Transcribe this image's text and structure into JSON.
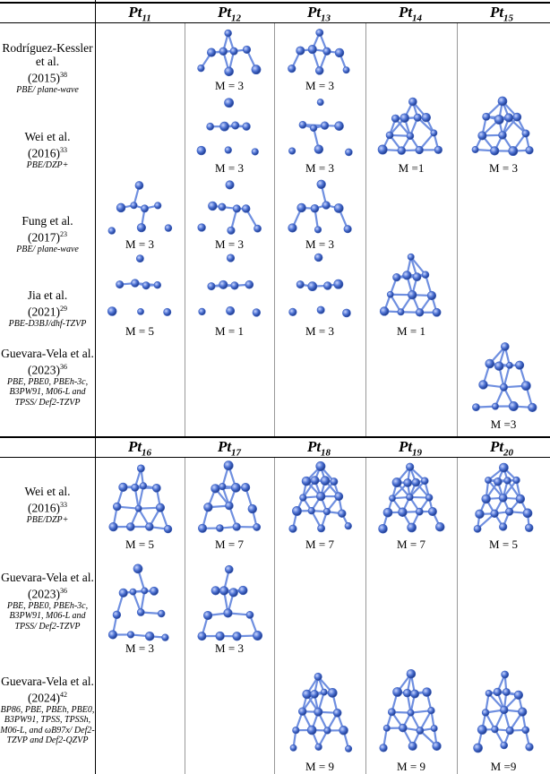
{
  "columns_top": [
    {
      "main": "Pt",
      "sub": "11"
    },
    {
      "main": "Pt",
      "sub": "12"
    },
    {
      "main": "Pt",
      "sub": "13"
    },
    {
      "main": "Pt",
      "sub": "14"
    },
    {
      "main": "Pt",
      "sub": "15"
    }
  ],
  "columns_bottom": [
    {
      "main": "Pt",
      "sub": "16"
    },
    {
      "main": "Pt",
      "sub": "17"
    },
    {
      "main": "Pt",
      "sub": "18"
    },
    {
      "main": "Pt",
      "sub": "19"
    },
    {
      "main": "Pt",
      "sub": "20"
    }
  ],
  "rows_top": [
    {
      "author": "Rodríguez-Kessler et al.",
      "year": "(2015)",
      "ref": "38",
      "method": "PBE/ plane-wave",
      "cells": [
        "",
        "M = 3",
        "M = 3",
        "",
        ""
      ]
    },
    {
      "author": "Wei et al.",
      "year": "(2016)",
      "ref": "33",
      "method": "PBE/DZP+",
      "cells": [
        "",
        "M = 3",
        "M = 3",
        "M =1",
        "M = 3"
      ]
    },
    {
      "author": "Fung et al.",
      "year": "(2017)",
      "ref": "23",
      "method": "PBE/ plane-wave",
      "cells": [
        "M = 3",
        "M = 3",
        "M = 3",
        "",
        ""
      ]
    },
    {
      "author": "Jia et al.",
      "year": "(2021)",
      "ref": "29",
      "method": "PBE-D3BJ/dhf-TZVP",
      "cells": [
        "M = 5",
        "M = 1",
        "M = 3",
        "M = 1",
        ""
      ]
    },
    {
      "author": "Guevara-Vela et al.",
      "year": "(2023)",
      "ref": "36",
      "method": "PBE, PBE0, PBEh-3c, B3PW91, M06-L and TPSS/ Def2-TZVP",
      "cells": [
        "",
        "",
        "",
        "",
        "M =3"
      ]
    }
  ],
  "rows_bottom": [
    {
      "author": "Wei et al.",
      "year": "(2016)",
      "ref": "33",
      "method": "PBE/DZP+",
      "cells": [
        "M = 5",
        "M = 7",
        "M = 7",
        "M = 7",
        "M = 5"
      ]
    },
    {
      "author": "Guevara-Vela et al.",
      "year": "(2023)",
      "ref": "36",
      "method": "PBE, PBE0, PBEh-3c, B3PW91, M06-L and TPSS/ Def2-TZVP",
      "cells": [
        "M = 3",
        "M = 3",
        "",
        "",
        ""
      ]
    },
    {
      "author": "Guevara-Vela et al.",
      "year": "(2024)",
      "ref": "42",
      "method": "BP86, PBE, PBEh, PBE0, B3PW91, TPSS, TPSSh, M06-L, and ωB97x/ Def2-TZVP and Def2-QZVP",
      "cells": [
        "",
        "",
        "M = 9",
        "M = 9",
        "M =9"
      ]
    }
  ],
  "colors": {
    "atom": "#3f63c2",
    "bond": "#6f8fe0",
    "grid": "#999999"
  }
}
